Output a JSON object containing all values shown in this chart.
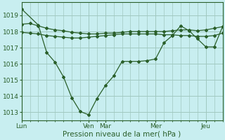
{
  "xlabel": "Pression niveau de la mer( hPa )",
  "bg_color": "#c8eef0",
  "grid_color_major": "#a0c8c0",
  "grid_color_minor": "#b8ddd8",
  "line_color": "#2a5f2a",
  "ylim": [
    1012.5,
    1019.8
  ],
  "yticks": [
    1013,
    1014,
    1015,
    1016,
    1017,
    1018,
    1019
  ],
  "day_labels": [
    "Lun",
    "Ven",
    "Mar",
    "Mer",
    "Jeu"
  ],
  "day_x": [
    0,
    48,
    60,
    96,
    132
  ],
  "xlim": [
    0,
    144
  ],
  "minor_x_step": 6,
  "line1_x": [
    0,
    12,
    18,
    24,
    30,
    36,
    42,
    48,
    54,
    60,
    66,
    72,
    78,
    84,
    90,
    96,
    102,
    108,
    114,
    120,
    126,
    132,
    138,
    144
  ],
  "line1_y": [
    1019.4,
    1018.4,
    1016.7,
    1016.1,
    1015.2,
    1013.9,
    1013.05,
    1012.85,
    1013.85,
    1014.65,
    1015.25,
    1016.15,
    1016.15,
    1016.15,
    1016.2,
    1016.3,
    1017.3,
    1017.75,
    1018.35,
    1018.05,
    1017.55,
    1017.05,
    1017.05,
    1018.3
  ],
  "line2_x": [
    0,
    6,
    12,
    18,
    24,
    30,
    36,
    42,
    48,
    54,
    60,
    66,
    72,
    78,
    84,
    90,
    96,
    102,
    108,
    114,
    120,
    126,
    132,
    138,
    144
  ],
  "line2_y": [
    1018.45,
    1018.5,
    1018.35,
    1018.2,
    1018.1,
    1018.05,
    1017.95,
    1017.9,
    1017.85,
    1017.85,
    1017.9,
    1017.9,
    1017.95,
    1018.0,
    1018.0,
    1018.0,
    1018.0,
    1018.0,
    1018.05,
    1018.1,
    1018.1,
    1018.05,
    1018.1,
    1018.2,
    1018.3
  ],
  "line3_x": [
    0,
    6,
    12,
    18,
    24,
    30,
    36,
    42,
    48,
    54,
    60,
    66,
    72,
    78,
    84,
    90,
    96,
    102,
    108,
    114,
    120,
    126,
    132,
    138,
    144
  ],
  "line3_y": [
    1017.95,
    1017.9,
    1017.85,
    1017.75,
    1017.7,
    1017.65,
    1017.6,
    1017.6,
    1017.65,
    1017.7,
    1017.75,
    1017.8,
    1017.85,
    1017.85,
    1017.85,
    1017.85,
    1017.85,
    1017.8,
    1017.8,
    1017.75,
    1017.75,
    1017.7,
    1017.7,
    1017.75,
    1017.9
  ]
}
